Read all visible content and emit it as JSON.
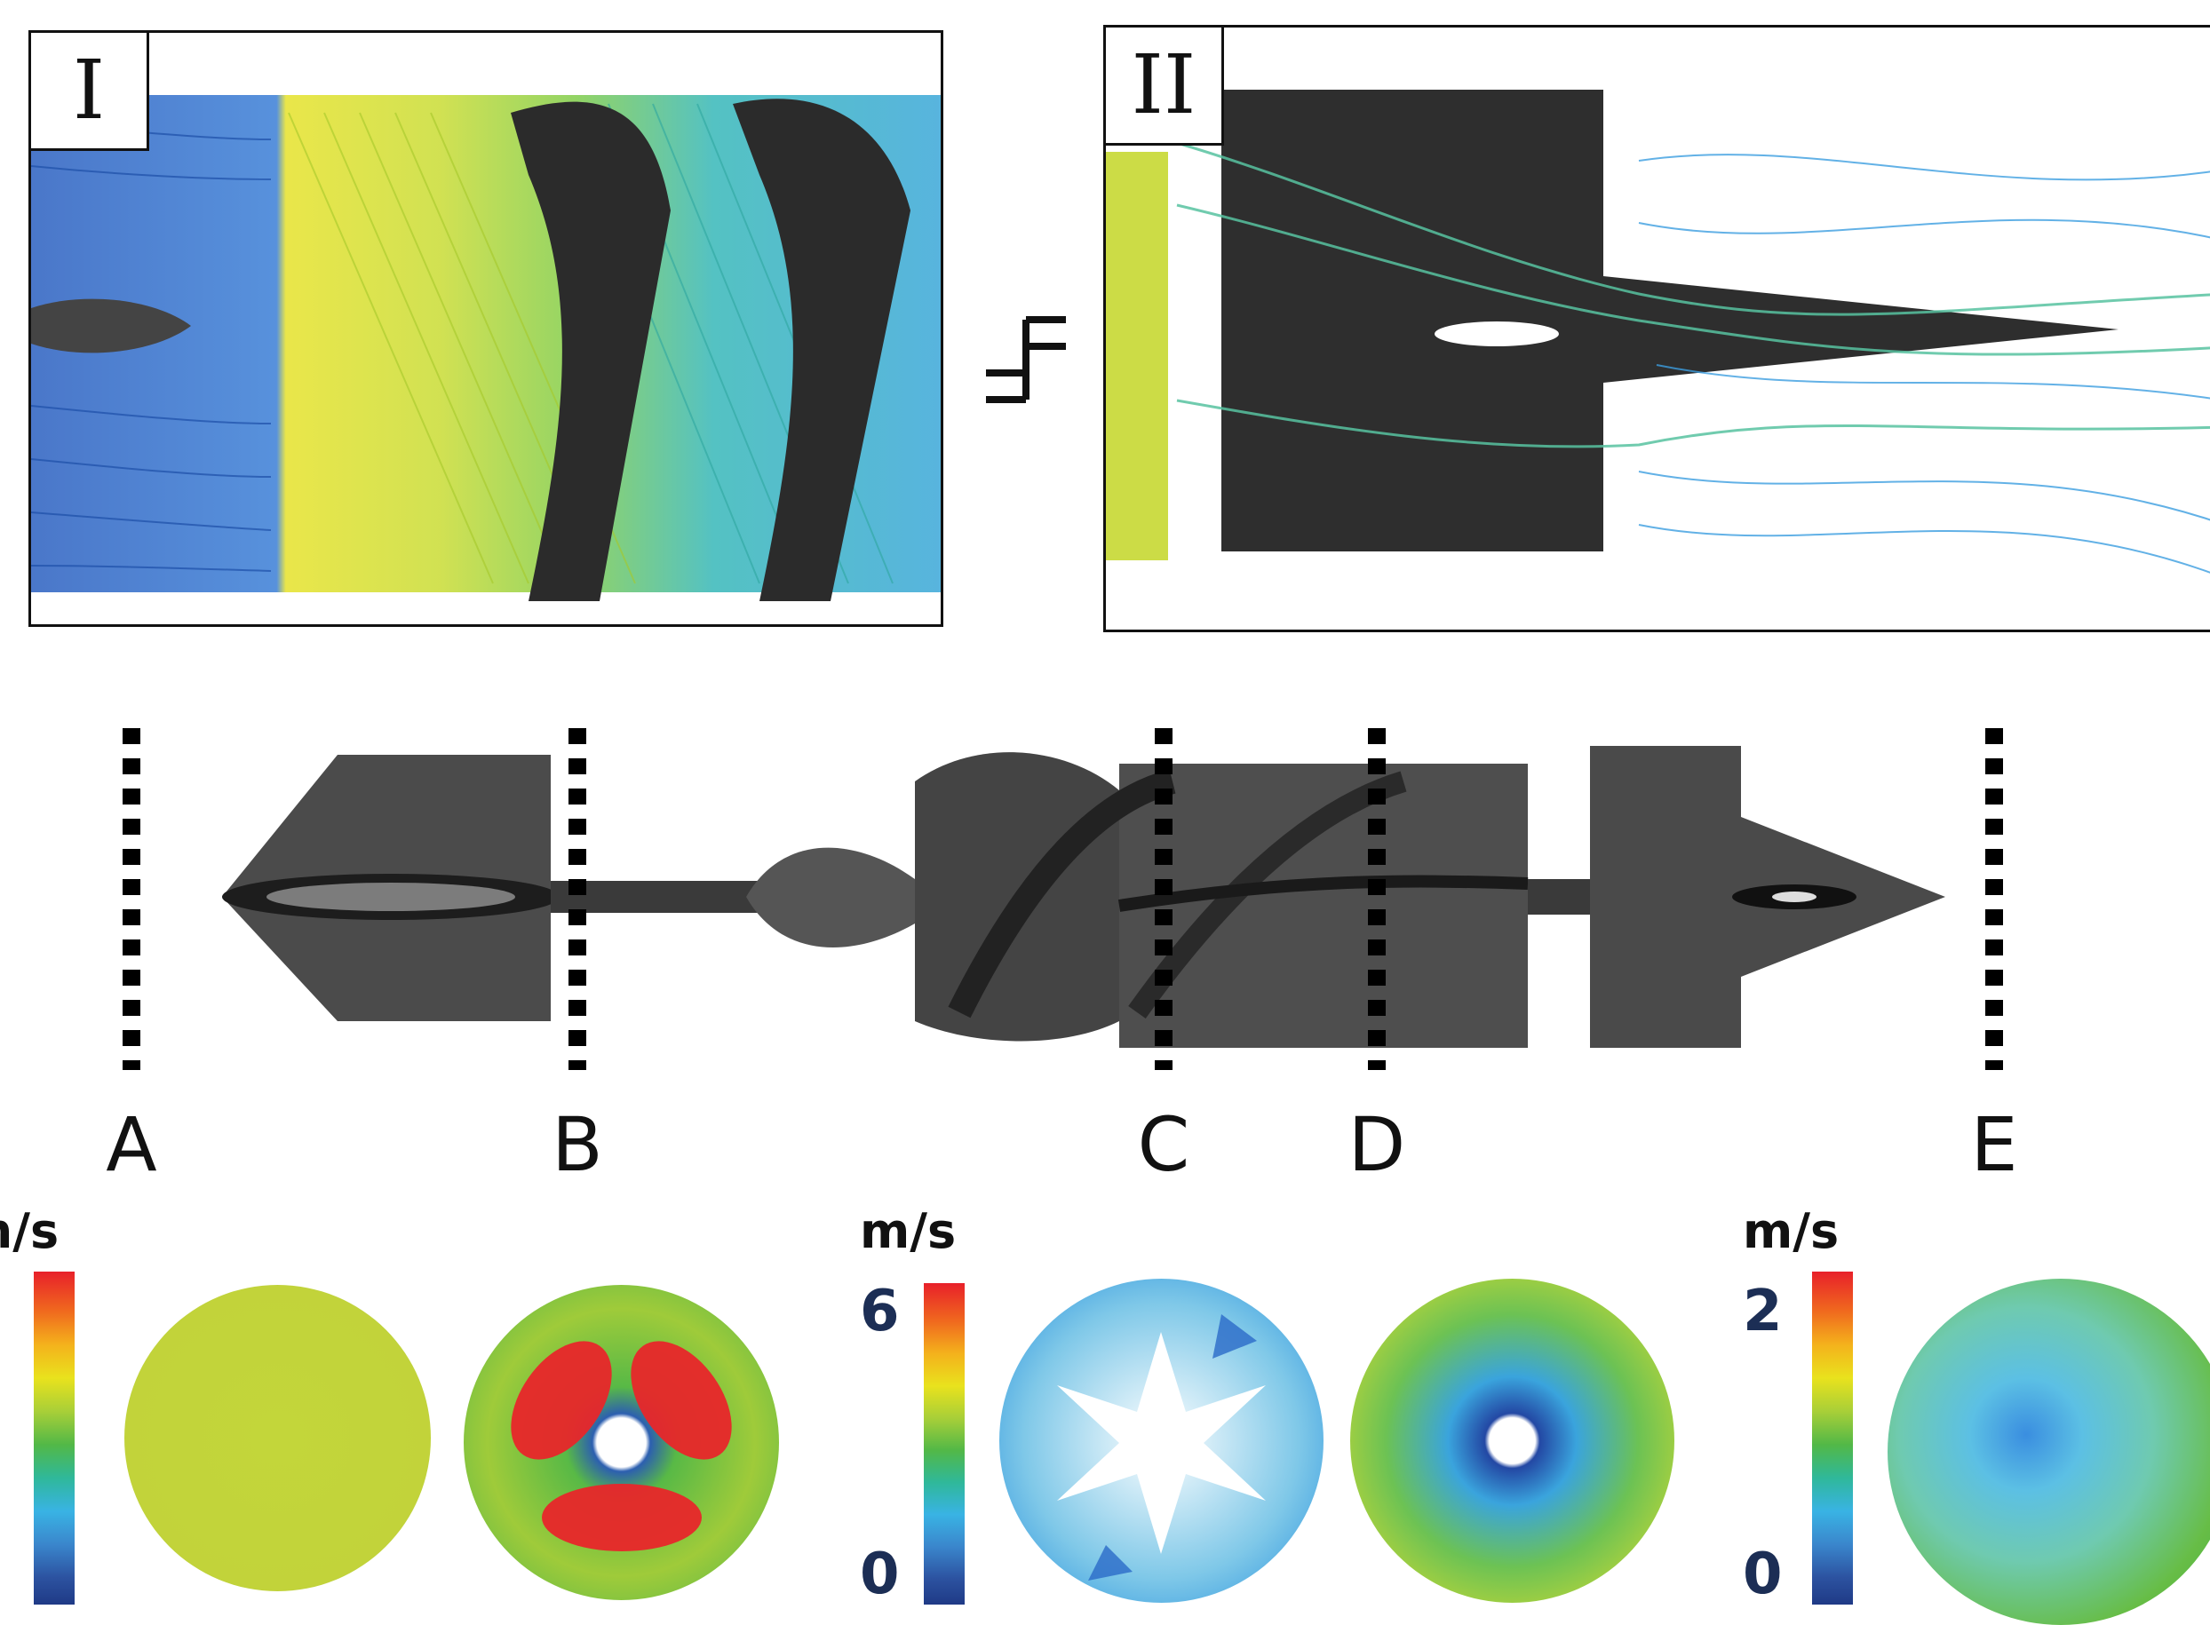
{
  "panels": {
    "left_label": "I",
    "right_label": "II"
  },
  "sections": {
    "a": "A",
    "b": "B",
    "c": "C",
    "d": "D",
    "e": "E"
  },
  "colorbars": [
    {
      "unit": "m/s",
      "max": "",
      "min": ""
    },
    {
      "unit": "m/s",
      "max": "6",
      "min": "0"
    },
    {
      "unit": "m/s",
      "max": "2",
      "min": "0"
    }
  ],
  "colors": {
    "slow": "#1f3a86",
    "mid": "#52b847",
    "fast": "#e8202a",
    "device": "#3e3e3e"
  },
  "icons": [
    "axis-break-icon"
  ]
}
